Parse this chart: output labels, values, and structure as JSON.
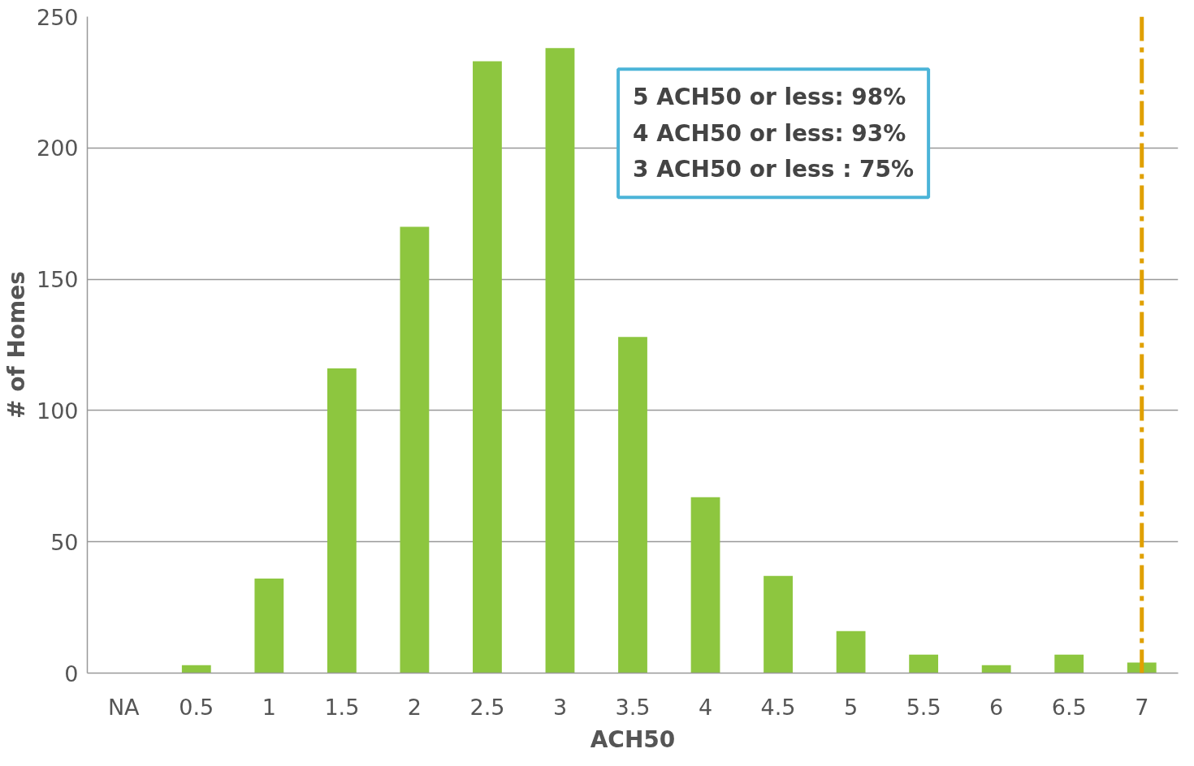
{
  "chart_data": {
    "type": "bar",
    "xlabel": "ACH50",
    "ylabel": "# of Homes",
    "categories": [
      "NA",
      "0.5",
      "1",
      "1.5",
      "2",
      "2.5",
      "3",
      "3.5",
      "4",
      "4.5",
      "5",
      "5.5",
      "6",
      "6.5",
      "7"
    ],
    "values": [
      0,
      3,
      36,
      116,
      170,
      233,
      238,
      128,
      67,
      37,
      16,
      7,
      3,
      7,
      4
    ],
    "color": "#8dc63f",
    "ylim": [
      0,
      250
    ],
    "yticks": [
      0,
      50,
      100,
      150,
      200,
      250
    ],
    "grid": "y",
    "ref_lines": [
      {
        "axis": "x",
        "value": "7",
        "color": "#e0a000",
        "line_style": "dashed"
      }
    ],
    "annotations": [
      "5 ACH50 or less: 98%\n4 ACH50 or less: 93%\n3 ACH50 or less : 75%"
    ]
  }
}
